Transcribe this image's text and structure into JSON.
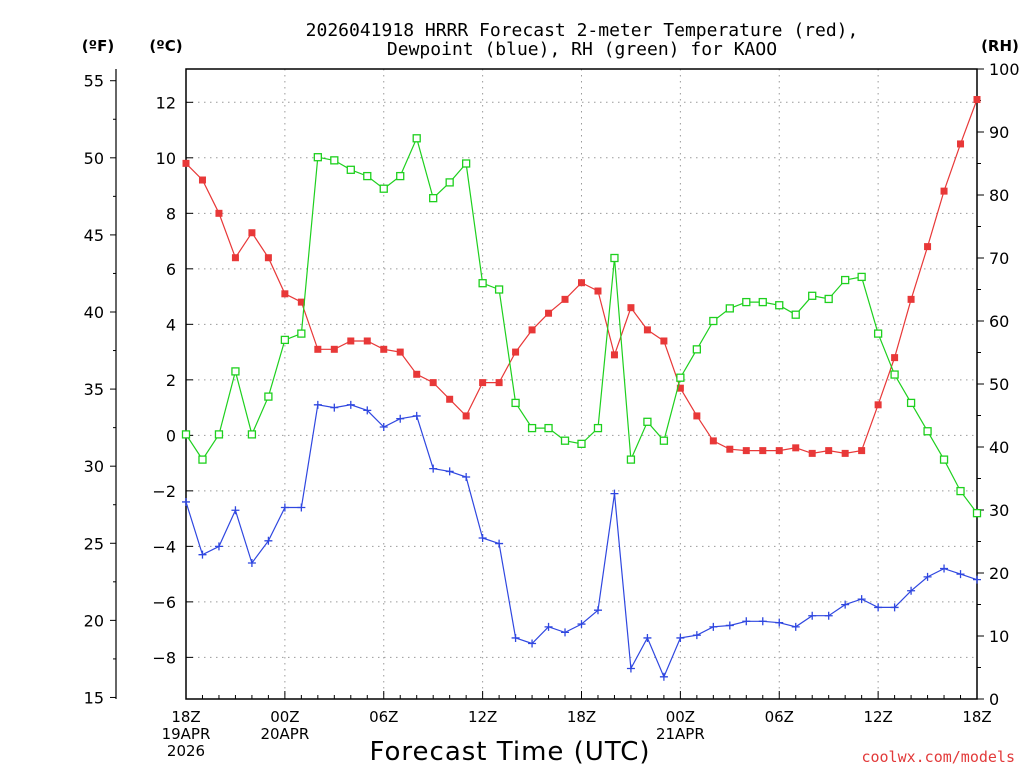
{
  "chart_data": {
    "type": "line",
    "title_line1": "2026041918 HRRR Forecast 2-meter Temperature (red),",
    "title_line2": "Dewpoint (blue), RH (green) for KAOO",
    "xlabel": "Forecast Time (UTC)",
    "left_unit_f": "(ºF)",
    "left_unit_c": "(ºC)",
    "right_unit": "(RH)",
    "credit": "coolwx.com/models",
    "x_range": [
      0,
      48
    ],
    "y_c_range": [
      -9.5,
      13.2
    ],
    "y_f_ticks": [
      15,
      20,
      25,
      30,
      35,
      40,
      45,
      50,
      55
    ],
    "y_c_ticks": [
      -8,
      -6,
      -4,
      -2,
      0,
      2,
      4,
      6,
      8,
      10,
      12
    ],
    "y_rh_range": [
      0,
      100
    ],
    "y_rh_ticks": [
      0,
      10,
      20,
      30,
      40,
      50,
      60,
      70,
      80,
      90,
      100
    ],
    "grid": true,
    "x_ticks": [
      {
        "x": 0,
        "lines": [
          "18Z",
          "19APR",
          "2026"
        ]
      },
      {
        "x": 6,
        "lines": [
          "00Z",
          "20APR"
        ]
      },
      {
        "x": 12,
        "lines": [
          "06Z"
        ]
      },
      {
        "x": 18,
        "lines": [
          "12Z"
        ]
      },
      {
        "x": 24,
        "lines": [
          "18Z"
        ]
      },
      {
        "x": 30,
        "lines": [
          "00Z",
          "21APR"
        ]
      },
      {
        "x": 36,
        "lines": [
          "06Z"
        ]
      },
      {
        "x": 42,
        "lines": [
          "12Z"
        ]
      },
      {
        "x": 48,
        "lines": [
          "18Z"
        ]
      }
    ],
    "series": [
      {
        "key": "temperature",
        "color": "#e83838",
        "marker": "filled-square",
        "axis": "celsius",
        "values": [
          9.8,
          9.2,
          8.0,
          6.4,
          7.3,
          6.4,
          5.1,
          4.8,
          3.1,
          3.1,
          3.4,
          3.4,
          3.1,
          3.0,
          2.2,
          1.9,
          1.3,
          0.7,
          1.9,
          1.9,
          3.0,
          3.8,
          4.4,
          4.9,
          5.5,
          5.2,
          2.9,
          4.6,
          3.8,
          3.4,
          1.7,
          0.7,
          -0.2,
          -0.5,
          -0.55,
          -0.55,
          -0.55,
          -0.45,
          -0.65,
          -0.55,
          -0.65,
          -0.55,
          1.1,
          2.8,
          4.9,
          6.8,
          8.8,
          10.5,
          12.1
        ]
      },
      {
        "key": "dewpoint",
        "color": "#2f47e0",
        "marker": "plus",
        "axis": "celsius",
        "values": [
          -2.4,
          -4.3,
          -4.0,
          -2.7,
          -4.6,
          -3.8,
          -2.6,
          -2.6,
          1.1,
          1.0,
          1.1,
          0.9,
          0.3,
          0.6,
          0.7,
          -1.2,
          -1.3,
          -1.5,
          -3.7,
          -3.9,
          -7.3,
          -7.5,
          -6.9,
          -7.1,
          -6.8,
          -6.3,
          -2.1,
          -8.4,
          -7.3,
          -8.7,
          -7.3,
          -7.2,
          -6.9,
          -6.85,
          -6.7,
          -6.7,
          -6.75,
          -6.9,
          -6.5,
          -6.5,
          -6.1,
          -5.9,
          -6.2,
          -6.2,
          -5.6,
          -5.1,
          -4.8,
          -5.0,
          -5.2
        ]
      },
      {
        "key": "rh",
        "color": "#1ed01e",
        "marker": "open-square",
        "axis": "rh",
        "values": [
          42,
          38,
          42,
          52,
          42,
          48,
          57,
          58,
          86,
          85.5,
          84,
          83,
          81,
          83,
          89,
          79.5,
          82,
          85,
          66,
          65,
          47,
          43,
          43,
          41,
          40.5,
          43,
          70,
          38,
          44,
          41,
          51,
          55.5,
          60,
          62,
          63,
          63,
          62.5,
          61,
          64,
          63.5,
          66.5,
          67,
          58,
          51.5,
          47,
          42.5,
          38,
          33,
          29.5
        ]
      }
    ]
  }
}
